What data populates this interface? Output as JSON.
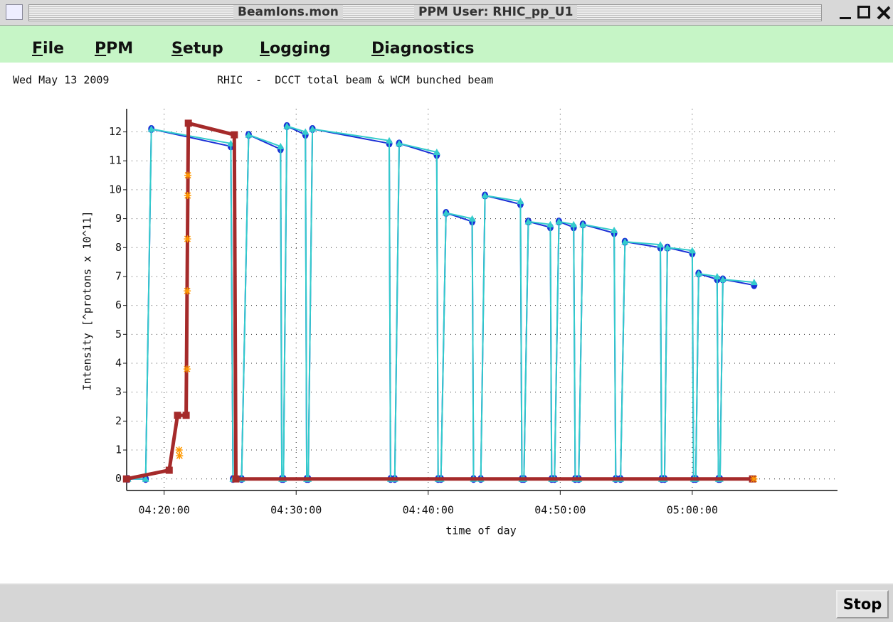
{
  "window": {
    "title": "BeamIons.mon",
    "user": "PPM User: RHIC_pp_U1",
    "menu": [
      "File",
      "PPM",
      "Setup",
      "Logging",
      "Diagnostics"
    ]
  },
  "date": "Wed May 13 2009",
  "button": "Stop",
  "chart_data": {
    "type": "line",
    "title": "RHIC  -  DCCT total beam & WCM bunched beam",
    "xlabel": "time of day",
    "ylabel": "Intensity [^protons x 10^11]",
    "xlim": [
      "04:17:00",
      "05:11:00"
    ],
    "xticks": [
      "04:20:00",
      "04:30:00",
      "04:40:00",
      "04:50:00",
      "05:00:00"
    ],
    "ylim": [
      -0.4,
      12.8
    ],
    "yticks": [
      0,
      1,
      2,
      3,
      4,
      5,
      6,
      7,
      8,
      9,
      10,
      11,
      12
    ],
    "grid": true,
    "series": [
      {
        "color": "#1a2fd6",
        "marker": "circle",
        "line": true,
        "x": [
          "04:17:15",
          "04:18:36",
          "04:19:02",
          "04:25:03",
          "04:25:13",
          "04:25:52",
          "04:26:24",
          "04:28:49",
          "04:28:55",
          "04:29:02",
          "04:29:18",
          "04:30:42",
          "04:30:48",
          "04:30:55",
          "04:31:14",
          "04:37:03",
          "04:37:09",
          "04:37:28",
          "04:37:48",
          "04:40:39",
          "04:40:45",
          "04:40:58",
          "04:41:21",
          "04:43:20",
          "04:43:26",
          "04:43:59",
          "04:44:18",
          "04:46:59",
          "04:47:06",
          "04:47:15",
          "04:47:35",
          "04:49:15",
          "04:49:21",
          "04:49:34",
          "04:49:54",
          "04:51:01",
          "04:51:08",
          "04:51:24",
          "04:51:43",
          "04:54:05",
          "04:54:12",
          "04:54:34",
          "04:54:54",
          "04:57:35",
          "04:57:41",
          "04:57:54",
          "04:58:07",
          "05:00:00",
          "05:00:06",
          "05:00:16",
          "05:00:29",
          "05:01:53",
          "05:01:59",
          "05:02:06",
          "05:02:19",
          "05:04:41"
        ],
        "values": [
          0,
          0,
          12.1,
          11.5,
          0,
          0,
          11.9,
          11.4,
          0,
          0,
          12.2,
          11.9,
          0,
          0,
          12.1,
          11.6,
          0,
          0,
          11.6,
          11.2,
          0,
          0,
          9.2,
          8.9,
          0,
          0,
          9.8,
          9.5,
          0,
          0,
          8.9,
          8.7,
          0,
          0,
          8.9,
          8.7,
          0,
          0,
          8.8,
          8.5,
          0,
          0,
          8.2,
          8.0,
          0,
          0,
          8.0,
          7.8,
          0,
          0,
          7.1,
          6.9,
          0,
          0,
          6.9,
          6.7
        ]
      },
      {
        "color": "#33cccc",
        "marker": "triangle",
        "line": true,
        "x": [
          "04:17:15",
          "04:18:36",
          "04:19:02",
          "04:25:03",
          "04:25:13",
          "04:25:52",
          "04:26:24",
          "04:28:49",
          "04:28:55",
          "04:29:02",
          "04:29:18",
          "04:30:42",
          "04:30:48",
          "04:30:55",
          "04:31:14",
          "04:37:03",
          "04:37:09",
          "04:37:28",
          "04:37:48",
          "04:40:39",
          "04:40:45",
          "04:40:58",
          "04:41:21",
          "04:43:20",
          "04:43:26",
          "04:43:59",
          "04:44:18",
          "04:46:59",
          "04:47:06",
          "04:47:15",
          "04:47:35",
          "04:49:15",
          "04:49:21",
          "04:49:34",
          "04:49:54",
          "04:51:01",
          "04:51:08",
          "04:51:24",
          "04:51:43",
          "04:54:05",
          "04:54:12",
          "04:54:34",
          "04:54:54",
          "04:57:35",
          "04:57:41",
          "04:57:54",
          "04:58:07",
          "05:00:00",
          "05:00:06",
          "05:00:16",
          "05:00:29",
          "05:01:53",
          "05:01:59",
          "05:02:06",
          "05:02:19",
          "05:04:41"
        ],
        "values": [
          0,
          0,
          12.1,
          11.6,
          0,
          0,
          11.9,
          11.5,
          0,
          0,
          12.2,
          12.0,
          0,
          0,
          12.1,
          11.7,
          0,
          0,
          11.6,
          11.3,
          0,
          0,
          9.2,
          9.0,
          0,
          0,
          9.8,
          9.6,
          0,
          0,
          8.9,
          8.8,
          0,
          0,
          8.9,
          8.8,
          0,
          0,
          8.8,
          8.6,
          0,
          0,
          8.2,
          8.1,
          0,
          0,
          8.0,
          7.9,
          0,
          0,
          7.1,
          7.0,
          0,
          0,
          6.9,
          6.8
        ]
      },
      {
        "color": "#a52a2a",
        "marker": "square",
        "line": true,
        "x": [
          "04:17:09",
          "04:20:23",
          "04:21:01",
          "04:21:40",
          "04:21:50",
          "04:25:19",
          "04:25:26",
          "05:04:34"
        ],
        "values": [
          0,
          0.3,
          2.2,
          2.2,
          12.3,
          11.9,
          0,
          0
        ]
      },
      {
        "color": "#ff9900",
        "marker": "star",
        "line": false,
        "x": [
          "04:21:08",
          "04:21:10",
          "04:21:44",
          "04:21:45",
          "04:21:46",
          "04:21:47",
          "04:21:48",
          "05:04:40"
        ],
        "values": [
          1.0,
          0.8,
          3.8,
          6.5,
          8.3,
          9.8,
          10.5,
          0
        ]
      }
    ]
  }
}
